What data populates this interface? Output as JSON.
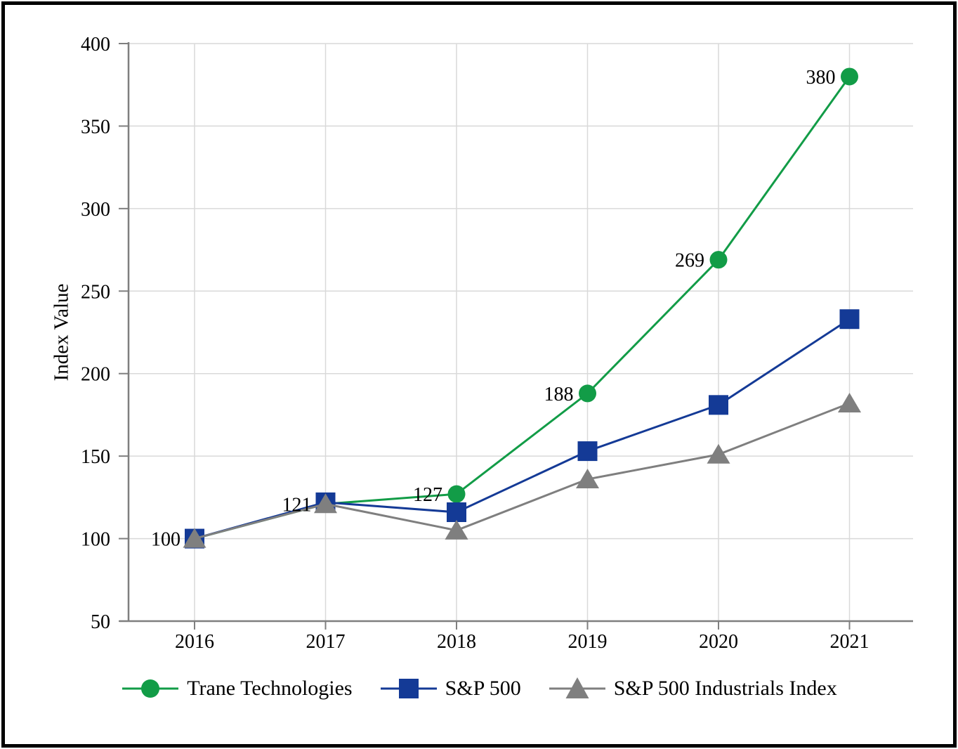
{
  "frame": {
    "background": "#ffffff",
    "border_color": "#000000"
  },
  "chart_data": {
    "type": "line",
    "title": "",
    "ylabel": "Index Value",
    "xlabel": "",
    "categories": [
      "2016",
      "2017",
      "2018",
      "2019",
      "2020",
      "2021"
    ],
    "ylim": [
      50,
      400
    ],
    "yticks": [
      50,
      100,
      150,
      200,
      250,
      300,
      350,
      400
    ],
    "ytick_labels": [
      "50",
      "100",
      "150",
      "200",
      "250",
      "300",
      "350",
      "400"
    ],
    "grid": true,
    "legend_position": "bottom",
    "colors": {
      "grid": "#d9d9d9",
      "axis": "#7f7f7f",
      "text": "#000000"
    },
    "series": [
      {
        "name": "Trane Technologies",
        "marker": "circle",
        "color": "#129c47",
        "values": [
          100,
          121,
          127,
          188,
          269,
          380
        ],
        "point_labels": [
          "100",
          "121",
          "127",
          "188",
          "269",
          "380"
        ]
      },
      {
        "name": "S&P 500",
        "marker": "square",
        "color": "#143a96",
        "values": [
          100,
          122,
          116,
          153,
          181,
          233
        ],
        "point_labels": []
      },
      {
        "name": "S&P 500 Industrials Index",
        "marker": "triangle",
        "color": "#7f7f7f",
        "values": [
          100,
          121,
          105,
          136,
          151,
          182
        ],
        "point_labels": []
      }
    ]
  }
}
